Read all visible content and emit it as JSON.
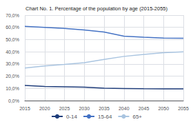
{
  "chart_data": {
    "type": "line",
    "title": "Chart No. 1. Percentage of the population by age (2015-2055)",
    "x": [
      2015,
      2020,
      2025,
      2030,
      2035,
      2040,
      2045,
      2050,
      2055
    ],
    "series": [
      {
        "name": "0-14",
        "color": "#1f3d7a",
        "values": [
          0.124,
          0.116,
          0.113,
          0.11,
          0.101,
          0.099,
          0.097,
          0.096,
          0.096
        ]
      },
      {
        "name": "15-64",
        "color": "#4472c4",
        "values": [
          0.608,
          0.6,
          0.592,
          0.578,
          0.562,
          0.528,
          0.519,
          0.513,
          0.511
        ]
      },
      {
        "name": "65+",
        "color": "#a9c4e0",
        "values": [
          0.267,
          0.283,
          0.296,
          0.311,
          0.337,
          0.362,
          0.378,
          0.392,
          0.4
        ]
      }
    ],
    "xlim": [
      2015,
      2055
    ],
    "xticks": [
      2015,
      2020,
      2025,
      2030,
      2035,
      2040,
      2045,
      2050,
      2055
    ],
    "ylim": [
      0.0,
      0.7
    ],
    "yticks": [
      {
        "value": 0.0,
        "label": "0,0%"
      },
      {
        "value": 0.1,
        "label": "10,0%"
      },
      {
        "value": 0.2,
        "label": "20,0%"
      },
      {
        "value": 0.3,
        "label": "30,0%"
      },
      {
        "value": 0.4,
        "label": "40,0%"
      },
      {
        "value": 0.5,
        "label": "50,0%"
      },
      {
        "value": 0.6,
        "label": "60,0%"
      },
      {
        "value": 0.7,
        "label": "70,0%"
      }
    ],
    "grid": true,
    "legend": "bottom"
  }
}
